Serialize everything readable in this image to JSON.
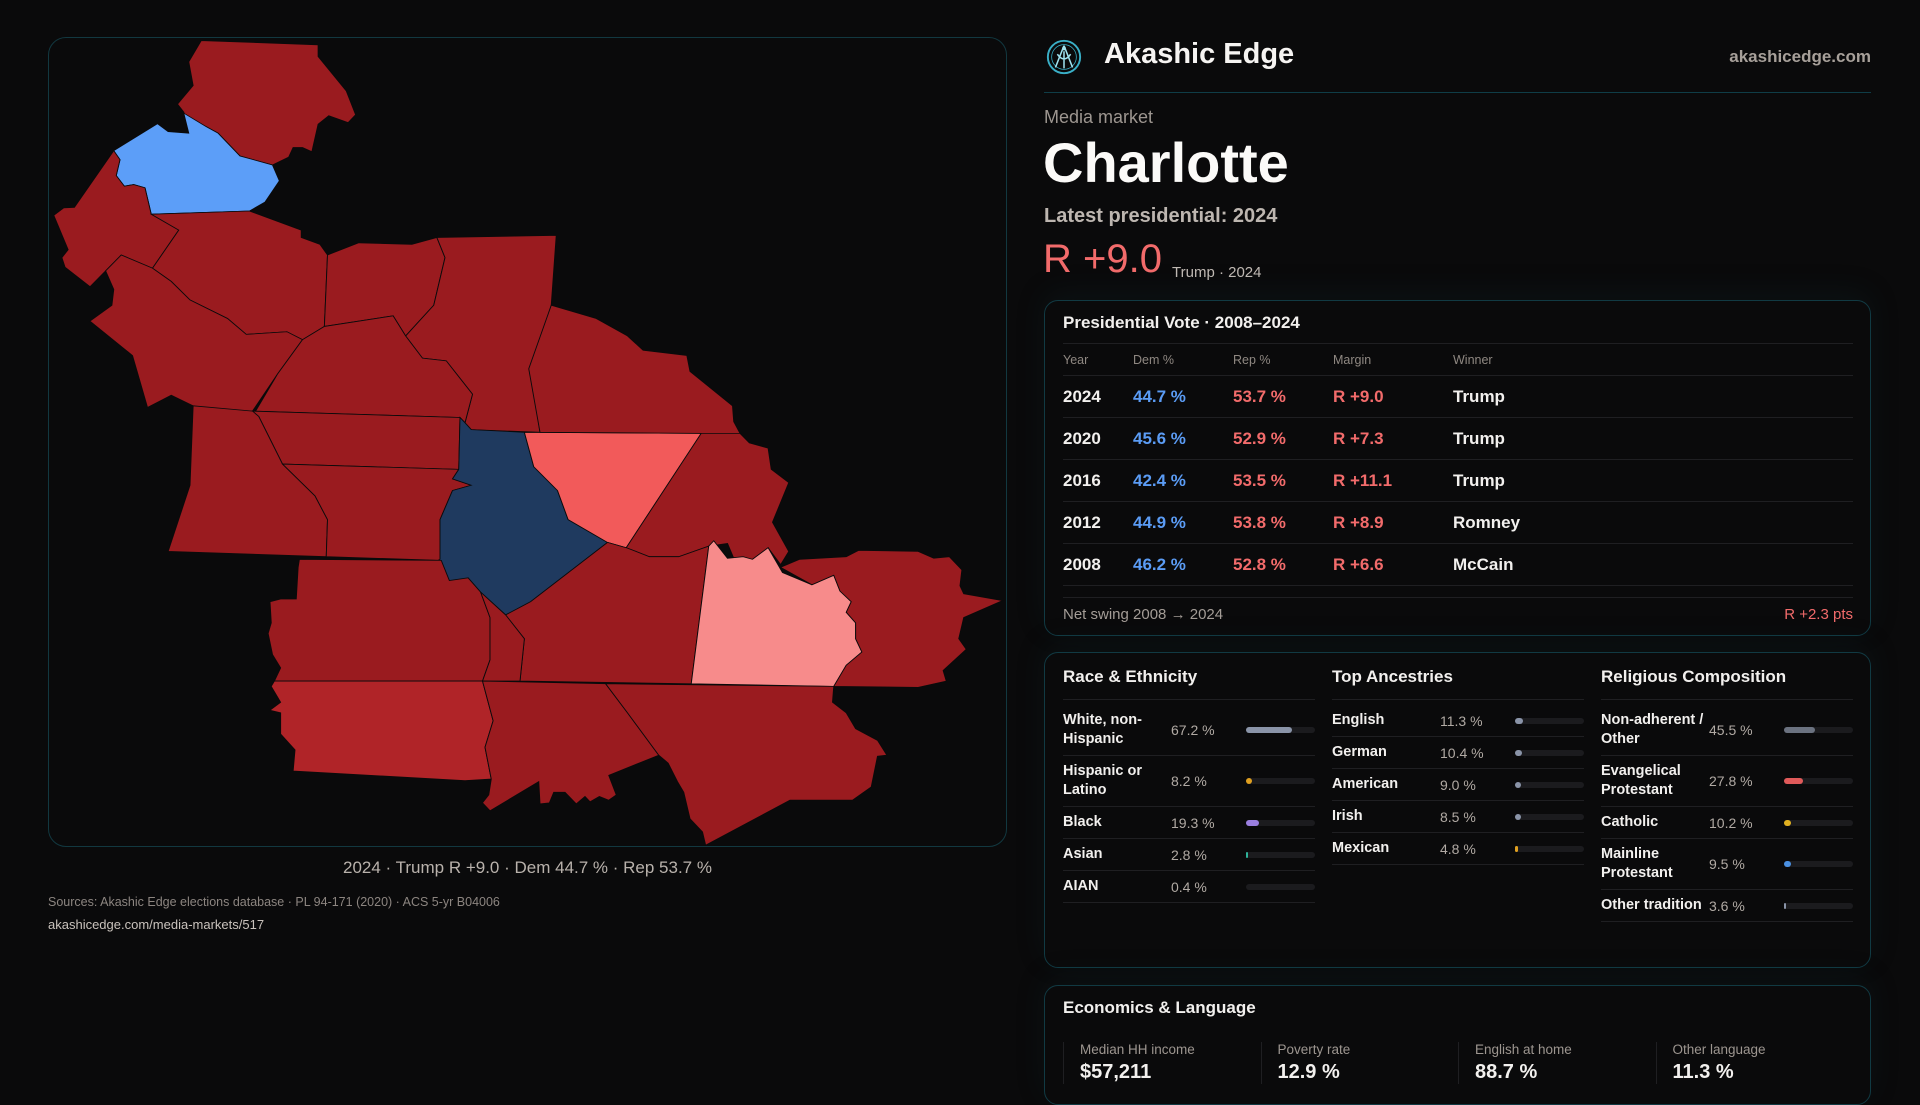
{
  "brand": {
    "name": "Akashic Edge",
    "site": "akashicedge.com",
    "logo_icon": "akashic-edge-logo",
    "accent": "#3ab0c8"
  },
  "market": {
    "kicker": "Media market",
    "name": "Charlotte",
    "latest_label": "Latest presidential: 2024",
    "margin": "R +9.0",
    "margin_sub": "Trump · 2024"
  },
  "map": {
    "caption": "2024 · Trump R +9.0 · Dem 44.7 % · Rep 53.7 %",
    "colors": {
      "safe_r": "#9a1b1f",
      "lean_r_dark": "#b02428",
      "likely_r": "#f25a5a",
      "lean_r": "#f78b8b",
      "safe_d": "#1f3a5f",
      "lean_d": "#5c9ef8"
    }
  },
  "presidential": {
    "title": "Presidential Vote · 2008–2024",
    "headers": [
      "Year",
      "Dem %",
      "Rep %",
      "Margin",
      "Winner"
    ],
    "rows": [
      {
        "year": "2024",
        "dem": "44.7 %",
        "rep": "53.7 %",
        "margin": "R +9.0",
        "winner": "Trump"
      },
      {
        "year": "2020",
        "dem": "45.6 %",
        "rep": "52.9 %",
        "margin": "R +7.3",
        "winner": "Trump"
      },
      {
        "year": "2016",
        "dem": "42.4 %",
        "rep": "53.5 %",
        "margin": "R +11.1",
        "winner": "Trump"
      },
      {
        "year": "2012",
        "dem": "44.9 %",
        "rep": "53.8 %",
        "margin": "R +8.9",
        "winner": "Romney"
      },
      {
        "year": "2008",
        "dem": "46.2 %",
        "rep": "52.8 %",
        "margin": "R +6.6",
        "winner": "McCain"
      }
    ],
    "swing_label": "Net swing 2008 → 2024",
    "swing_value": "R +2.3 pts"
  },
  "demographics": [
    {
      "title": "Race & Ethnicity",
      "items": [
        {
          "label": "White, non-Hispanic",
          "value": "67.2 %",
          "pct": 67.2,
          "color": "#8a94a8"
        },
        {
          "label": "Hispanic or Latino",
          "value": "8.2 %",
          "pct": 8.2,
          "color": "#e0a020"
        },
        {
          "label": "Black",
          "value": "19.3 %",
          "pct": 19.3,
          "color": "#9b7fe0"
        },
        {
          "label": "Asian",
          "value": "2.8 %",
          "pct": 2.8,
          "color": "#2fb39a"
        },
        {
          "label": "AIAN",
          "value": "0.4 %",
          "pct": 0.4,
          "color": "#5a5a60"
        }
      ]
    },
    {
      "title": "Top Ancestries",
      "items": [
        {
          "label": "English",
          "value": "11.3 %",
          "pct": 11.3,
          "color": "#8a94a8"
        },
        {
          "label": "German",
          "value": "10.4 %",
          "pct": 10.4,
          "color": "#8a94a8"
        },
        {
          "label": "American",
          "value": "9.0 %",
          "pct": 9.0,
          "color": "#8a94a8"
        },
        {
          "label": "Irish",
          "value": "8.5 %",
          "pct": 8.5,
          "color": "#8a94a8"
        },
        {
          "label": "Mexican",
          "value": "4.8 %",
          "pct": 4.8,
          "color": "#e0a020"
        }
      ]
    },
    {
      "title": "Religious Composition",
      "items": [
        {
          "label": "Non-adherent / Other",
          "value": "45.5 %",
          "pct": 45.5,
          "color": "#6b7280"
        },
        {
          "label": "Evangelical Protestant",
          "value": "27.8 %",
          "pct": 27.8,
          "color": "#e05a5a"
        },
        {
          "label": "Catholic",
          "value": "10.2 %",
          "pct": 10.2,
          "color": "#e0b020"
        },
        {
          "label": "Mainline Protestant",
          "value": "9.5 %",
          "pct": 9.5,
          "color": "#4a90e2"
        },
        {
          "label": "Other tradition",
          "value": "3.6 %",
          "pct": 3.6,
          "color": "#8a94a8"
        }
      ]
    }
  ],
  "economics": {
    "title": "Economics & Language",
    "stats": [
      {
        "label": "Median HH income",
        "value": "$57,211"
      },
      {
        "label": "Poverty rate",
        "value": "12.9 %"
      },
      {
        "label": "English at home",
        "value": "88.7 %"
      },
      {
        "label": "Other language",
        "value": "11.3 %"
      }
    ]
  },
  "sources": {
    "text": "Sources: Akashic Edge elections database · PL 94-171 (2020) · ACS 5-yr B04006",
    "link": "akashicedge.com/media-markets/517"
  }
}
